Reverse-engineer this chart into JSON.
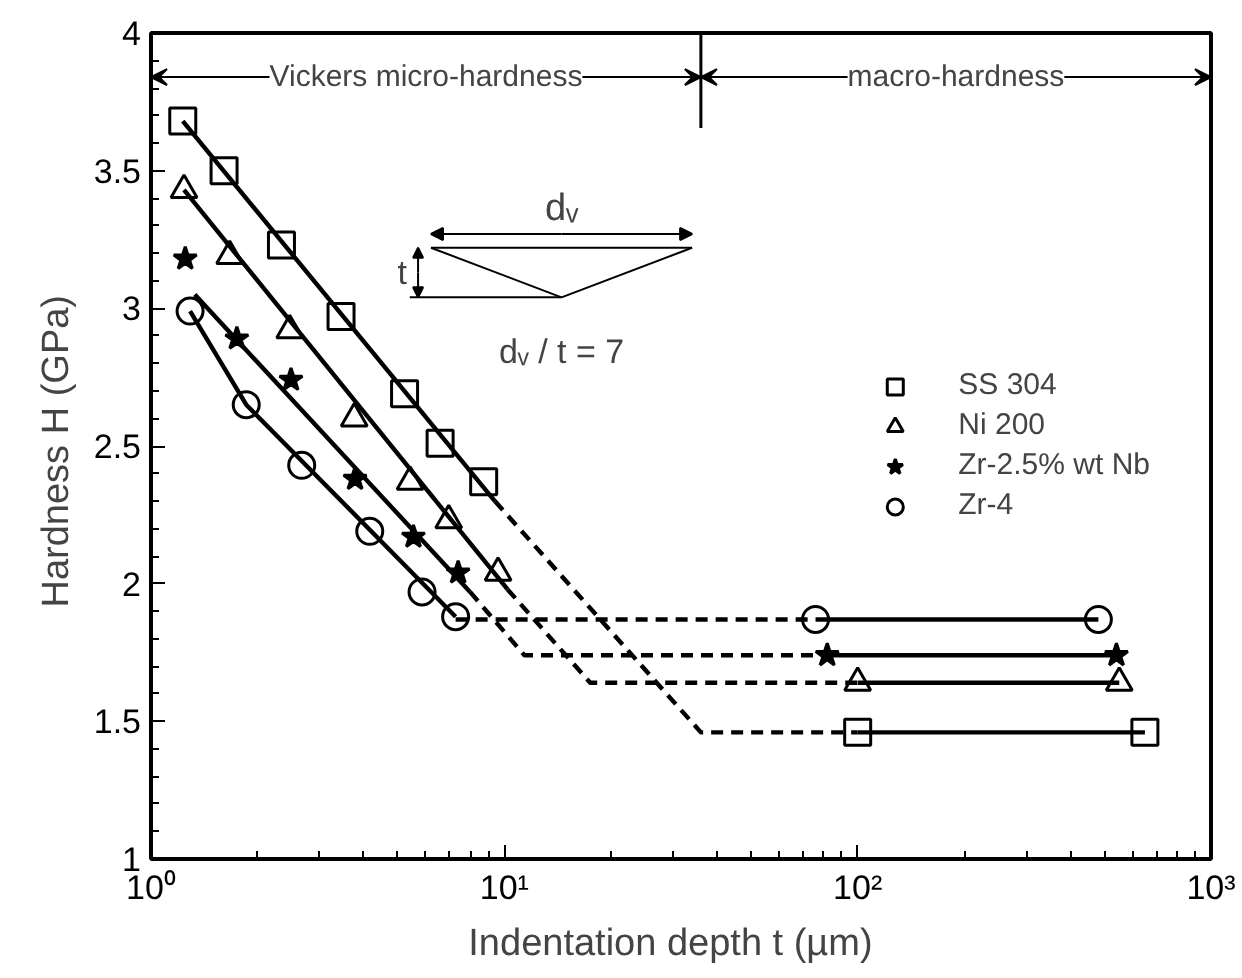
{
  "chart_data": {
    "type": "scatter",
    "xlabel": "Indentation depth  t  (µm)",
    "ylabel": "Hardness  H (GPa)",
    "log": "x",
    "grid": false,
    "legend": "right",
    "xlim": [
      1,
      1000
    ],
    "xticks": [
      {
        "value": 1,
        "label": "10⁰"
      },
      {
        "value": 10,
        "label": "10¹"
      },
      {
        "value": 100,
        "label": "10²"
      },
      {
        "value": 1000,
        "label": "10³"
      }
    ],
    "ylim": [
      1,
      4
    ],
    "yticks": [
      1,
      1.5,
      2,
      2.5,
      3,
      3.5,
      4
    ],
    "series": [
      {
        "name": "SS 304",
        "color": "#000000",
        "marker": "square",
        "x": [
          1.23,
          1.61,
          2.34,
          3.45,
          5.22,
          6.58,
          8.74,
          100,
          650
        ],
        "values": [
          3.68,
          3.5,
          3.23,
          2.97,
          2.69,
          2.51,
          2.37,
          1.46,
          1.46
        ]
      },
      {
        "name": "Ni 200",
        "color": "#000000",
        "marker": "triangle",
        "x": [
          1.24,
          1.67,
          2.47,
          3.76,
          5.41,
          6.96,
          9.6,
          100,
          550
        ],
        "values": [
          3.43,
          3.19,
          2.92,
          2.6,
          2.37,
          2.23,
          2.04,
          1.64,
          1.64
        ]
      },
      {
        "name": "Zr-2.5% wt Nb",
        "color": "#000000",
        "marker": "star",
        "x": [
          1.25,
          1.75,
          2.49,
          3.78,
          5.53,
          7.4,
          82,
          540
        ],
        "values": [
          3.18,
          2.89,
          2.74,
          2.38,
          2.17,
          2.04,
          1.74,
          1.74
        ]
      },
      {
        "name": "Zr-4",
        "color": "#000000",
        "marker": "circle",
        "x": [
          1.29,
          1.86,
          2.67,
          4.16,
          5.85,
          7.28,
          76,
          480
        ],
        "values": [
          2.99,
          2.65,
          2.43,
          2.19,
          1.97,
          1.88,
          1.87,
          1.87
        ]
      },
      {
        "type": "line",
        "color": "#000000",
        "line_style": "solid",
        "x": [
          1.23,
          9.4
        ],
        "values": [
          3.68,
          2.3
        ]
      },
      {
        "type": "line",
        "color": "#000000",
        "line_style": "dashed",
        "x": [
          9.4,
          36,
          100
        ],
        "values": [
          2.3,
          1.46,
          1.46
        ]
      },
      {
        "type": "line",
        "color": "#000000",
        "line_style": "solid",
        "x": [
          100,
          650
        ],
        "values": [
          1.46,
          1.46
        ]
      },
      {
        "type": "line",
        "color": "#000000",
        "line_style": "solid",
        "x": [
          1.24,
          10.2
        ],
        "values": [
          3.43,
          1.98
        ]
      },
      {
        "type": "line",
        "color": "#000000",
        "line_style": "dashed",
        "x": [
          10.2,
          17.5,
          100
        ],
        "values": [
          1.98,
          1.64,
          1.64
        ]
      },
      {
        "type": "line",
        "color": "#000000",
        "line_style": "solid",
        "x": [
          100,
          550
        ],
        "values": [
          1.64,
          1.64
        ]
      },
      {
        "type": "line",
        "color": "#000000",
        "line_style": "solid",
        "x": [
          1.33,
          8.0
        ],
        "values": [
          3.05,
          1.97
        ]
      },
      {
        "type": "line",
        "color": "#000000",
        "line_style": "dashed",
        "x": [
          8.0,
          11.4,
          82
        ],
        "values": [
          1.97,
          1.74,
          1.74
        ]
      },
      {
        "type": "line",
        "color": "#000000",
        "line_style": "solid",
        "x": [
          82,
          540
        ],
        "values": [
          1.74,
          1.74
        ]
      },
      {
        "type": "line",
        "color": "#000000",
        "line_style": "solid",
        "x": [
          1.29,
          1.86,
          7.28
        ],
        "values": [
          2.99,
          2.65,
          1.88
        ]
      },
      {
        "type": "line",
        "color": "#000000",
        "line_style": "dashed",
        "x": [
          7.28,
          76
        ],
        "values": [
          1.87,
          1.87
        ]
      },
      {
        "type": "line",
        "color": "#000000",
        "line_style": "solid",
        "x": [
          76,
          480
        ],
        "values": [
          1.87,
          1.87
        ]
      }
    ],
    "ref_lines": [
      {
        "axis": "x",
        "value": 36,
        "label": null
      }
    ],
    "annotations": [
      "dᵥ",
      "t",
      "dᵥ / t = 7",
      {
        "text": "Vickers micro-hardness",
        "x": 36,
        "y": 3.84
      },
      {
        "text": "macro-hardness",
        "x": 36,
        "y": 3.84
      }
    ]
  }
}
